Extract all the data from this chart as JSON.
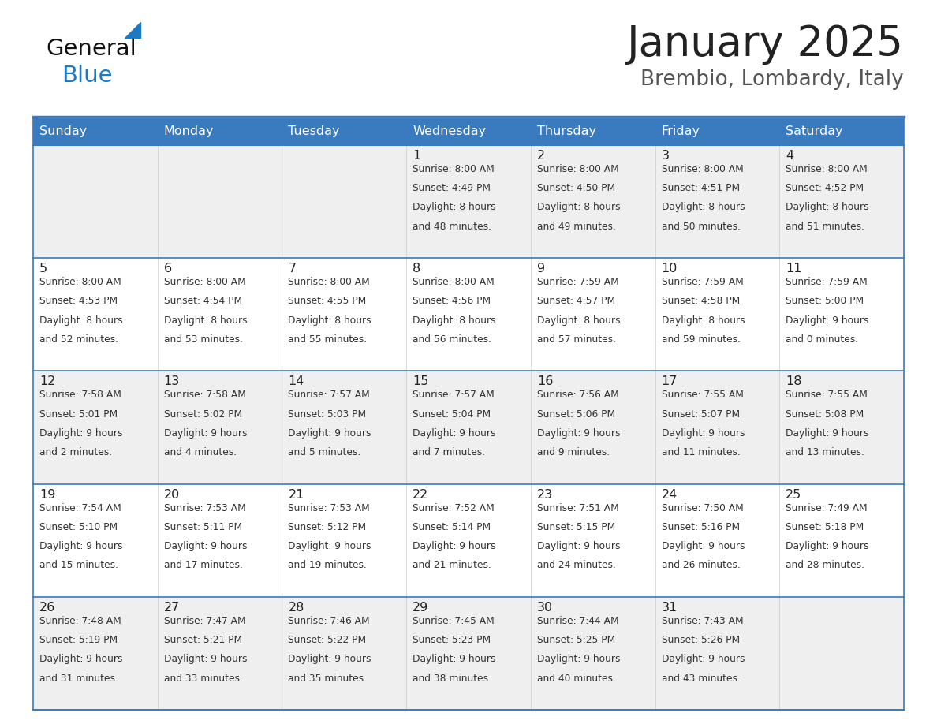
{
  "title": "January 2025",
  "subtitle": "Brembio, Lombardy, Italy",
  "days_of_week": [
    "Sunday",
    "Monday",
    "Tuesday",
    "Wednesday",
    "Thursday",
    "Friday",
    "Saturday"
  ],
  "header_bg": "#3a7abf",
  "header_text": "#ffffff",
  "row_bg_odd": "#efefef",
  "row_bg_even": "#ffffff",
  "border_color": "#3a7abf",
  "day_number_color": "#222222",
  "cell_text_color": "#333333",
  "title_color": "#222222",
  "subtitle_color": "#555555",
  "generalblue_black": "#1a1a1a",
  "generalblue_blue": "#1e78c2",
  "logo_text_color": "#111111",
  "calendar_data": [
    [
      null,
      null,
      null,
      {
        "day": 1,
        "sunrise": "8:00 AM",
        "sunset": "4:49 PM",
        "daylight": "8 hours",
        "daylight2": "and 48 minutes."
      },
      {
        "day": 2,
        "sunrise": "8:00 AM",
        "sunset": "4:50 PM",
        "daylight": "8 hours",
        "daylight2": "and 49 minutes."
      },
      {
        "day": 3,
        "sunrise": "8:00 AM",
        "sunset": "4:51 PM",
        "daylight": "8 hours",
        "daylight2": "and 50 minutes."
      },
      {
        "day": 4,
        "sunrise": "8:00 AM",
        "sunset": "4:52 PM",
        "daylight": "8 hours",
        "daylight2": "and 51 minutes."
      }
    ],
    [
      {
        "day": 5,
        "sunrise": "8:00 AM",
        "sunset": "4:53 PM",
        "daylight": "8 hours",
        "daylight2": "and 52 minutes."
      },
      {
        "day": 6,
        "sunrise": "8:00 AM",
        "sunset": "4:54 PM",
        "daylight": "8 hours",
        "daylight2": "and 53 minutes."
      },
      {
        "day": 7,
        "sunrise": "8:00 AM",
        "sunset": "4:55 PM",
        "daylight": "8 hours",
        "daylight2": "and 55 minutes."
      },
      {
        "day": 8,
        "sunrise": "8:00 AM",
        "sunset": "4:56 PM",
        "daylight": "8 hours",
        "daylight2": "and 56 minutes."
      },
      {
        "day": 9,
        "sunrise": "7:59 AM",
        "sunset": "4:57 PM",
        "daylight": "8 hours",
        "daylight2": "and 57 minutes."
      },
      {
        "day": 10,
        "sunrise": "7:59 AM",
        "sunset": "4:58 PM",
        "daylight": "8 hours",
        "daylight2": "and 59 minutes."
      },
      {
        "day": 11,
        "sunrise": "7:59 AM",
        "sunset": "5:00 PM",
        "daylight": "9 hours",
        "daylight2": "and 0 minutes."
      }
    ],
    [
      {
        "day": 12,
        "sunrise": "7:58 AM",
        "sunset": "5:01 PM",
        "daylight": "9 hours",
        "daylight2": "and 2 minutes."
      },
      {
        "day": 13,
        "sunrise": "7:58 AM",
        "sunset": "5:02 PM",
        "daylight": "9 hours",
        "daylight2": "and 4 minutes."
      },
      {
        "day": 14,
        "sunrise": "7:57 AM",
        "sunset": "5:03 PM",
        "daylight": "9 hours",
        "daylight2": "and 5 minutes."
      },
      {
        "day": 15,
        "sunrise": "7:57 AM",
        "sunset": "5:04 PM",
        "daylight": "9 hours",
        "daylight2": "and 7 minutes."
      },
      {
        "day": 16,
        "sunrise": "7:56 AM",
        "sunset": "5:06 PM",
        "daylight": "9 hours",
        "daylight2": "and 9 minutes."
      },
      {
        "day": 17,
        "sunrise": "7:55 AM",
        "sunset": "5:07 PM",
        "daylight": "9 hours",
        "daylight2": "and 11 minutes."
      },
      {
        "day": 18,
        "sunrise": "7:55 AM",
        "sunset": "5:08 PM",
        "daylight": "9 hours",
        "daylight2": "and 13 minutes."
      }
    ],
    [
      {
        "day": 19,
        "sunrise": "7:54 AM",
        "sunset": "5:10 PM",
        "daylight": "9 hours",
        "daylight2": "and 15 minutes."
      },
      {
        "day": 20,
        "sunrise": "7:53 AM",
        "sunset": "5:11 PM",
        "daylight": "9 hours",
        "daylight2": "and 17 minutes."
      },
      {
        "day": 21,
        "sunrise": "7:53 AM",
        "sunset": "5:12 PM",
        "daylight": "9 hours",
        "daylight2": "and 19 minutes."
      },
      {
        "day": 22,
        "sunrise": "7:52 AM",
        "sunset": "5:14 PM",
        "daylight": "9 hours",
        "daylight2": "and 21 minutes."
      },
      {
        "day": 23,
        "sunrise": "7:51 AM",
        "sunset": "5:15 PM",
        "daylight": "9 hours",
        "daylight2": "and 24 minutes."
      },
      {
        "day": 24,
        "sunrise": "7:50 AM",
        "sunset": "5:16 PM",
        "daylight": "9 hours",
        "daylight2": "and 26 minutes."
      },
      {
        "day": 25,
        "sunrise": "7:49 AM",
        "sunset": "5:18 PM",
        "daylight": "9 hours",
        "daylight2": "and 28 minutes."
      }
    ],
    [
      {
        "day": 26,
        "sunrise": "7:48 AM",
        "sunset": "5:19 PM",
        "daylight": "9 hours",
        "daylight2": "and 31 minutes."
      },
      {
        "day": 27,
        "sunrise": "7:47 AM",
        "sunset": "5:21 PM",
        "daylight": "9 hours",
        "daylight2": "and 33 minutes."
      },
      {
        "day": 28,
        "sunrise": "7:46 AM",
        "sunset": "5:22 PM",
        "daylight": "9 hours",
        "daylight2": "and 35 minutes."
      },
      {
        "day": 29,
        "sunrise": "7:45 AM",
        "sunset": "5:23 PM",
        "daylight": "9 hours",
        "daylight2": "and 38 minutes."
      },
      {
        "day": 30,
        "sunrise": "7:44 AM",
        "sunset": "5:25 PM",
        "daylight": "9 hours",
        "daylight2": "and 40 minutes."
      },
      {
        "day": 31,
        "sunrise": "7:43 AM",
        "sunset": "5:26 PM",
        "daylight": "9 hours",
        "daylight2": "and 43 minutes."
      },
      null
    ]
  ]
}
